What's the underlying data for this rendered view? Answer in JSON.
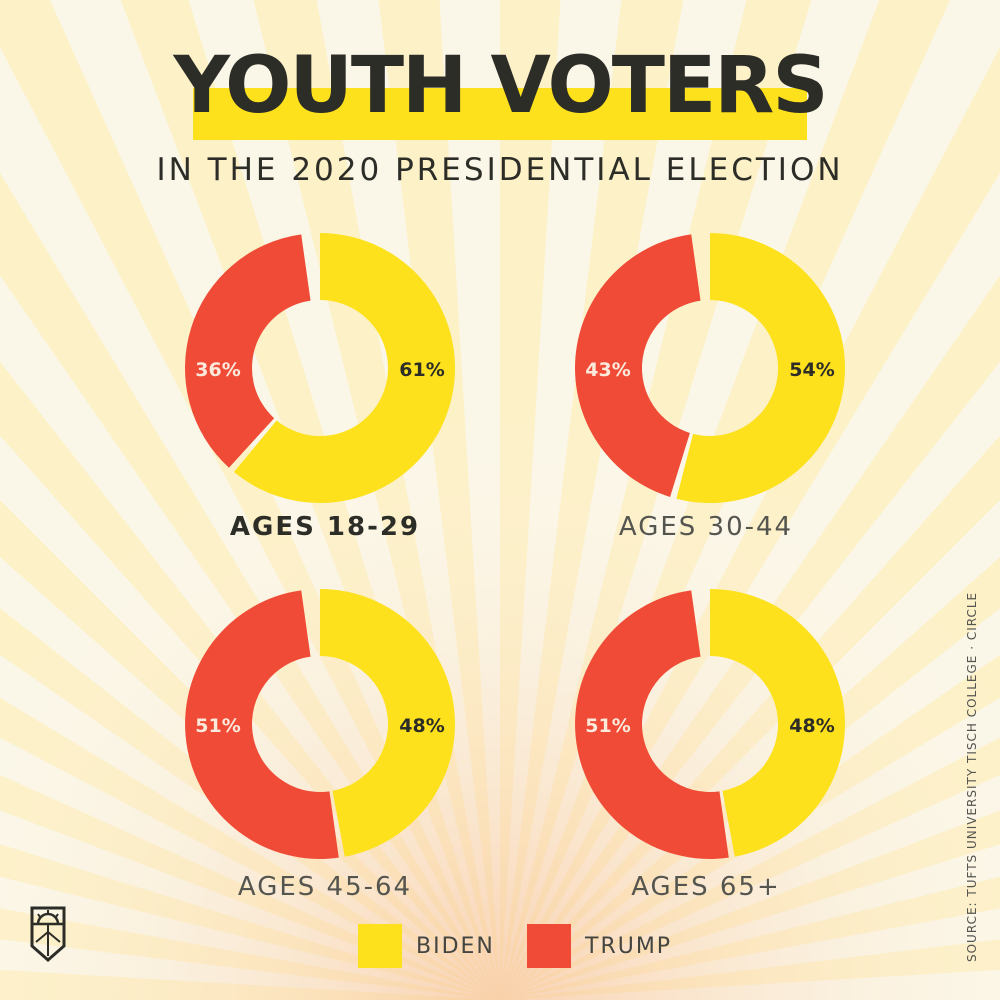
{
  "header": {
    "title": "YOUTH VOTERS",
    "subtitle": "IN THE 2020 PRESIDENTIAL ELECTION"
  },
  "colors": {
    "biden": "#fde11c",
    "trump": "#ef4b37",
    "background": "#fbf7e8",
    "ray": "#fdf0c2",
    "text_dark": "#2d2d28"
  },
  "chart_data": [
    {
      "type": "pie",
      "title": "AGES 18-29",
      "highlight": true,
      "slices": [
        {
          "name": "BIDEN",
          "value": 61,
          "label": "61%"
        },
        {
          "name": "TRUMP",
          "value": 36,
          "label": "36%"
        }
      ]
    },
    {
      "type": "pie",
      "title": "AGES 30-44",
      "highlight": false,
      "slices": [
        {
          "name": "BIDEN",
          "value": 54,
          "label": "54%"
        },
        {
          "name": "TRUMP",
          "value": 43,
          "label": "43%"
        }
      ]
    },
    {
      "type": "pie",
      "title": "AGES 45-64",
      "highlight": false,
      "slices": [
        {
          "name": "BIDEN",
          "value": 48,
          "label": "48%"
        },
        {
          "name": "TRUMP",
          "value": 51,
          "label": "51%"
        }
      ]
    },
    {
      "type": "pie",
      "title": "AGES 65+",
      "highlight": false,
      "slices": [
        {
          "name": "BIDEN",
          "value": 48,
          "label": "48%"
        },
        {
          "name": "TRUMP",
          "value": 51,
          "label": "51%"
        }
      ]
    }
  ],
  "legend": [
    {
      "name": "BIDEN",
      "label": "BIDEN"
    },
    {
      "name": "TRUMP",
      "label": "TRUMP"
    }
  ],
  "source": "SOURCE: TUFTS UNIVERSITY TISCH COLLEGE · CIRCLE",
  "logo": {
    "icon": "sunrise-logo-icon"
  }
}
